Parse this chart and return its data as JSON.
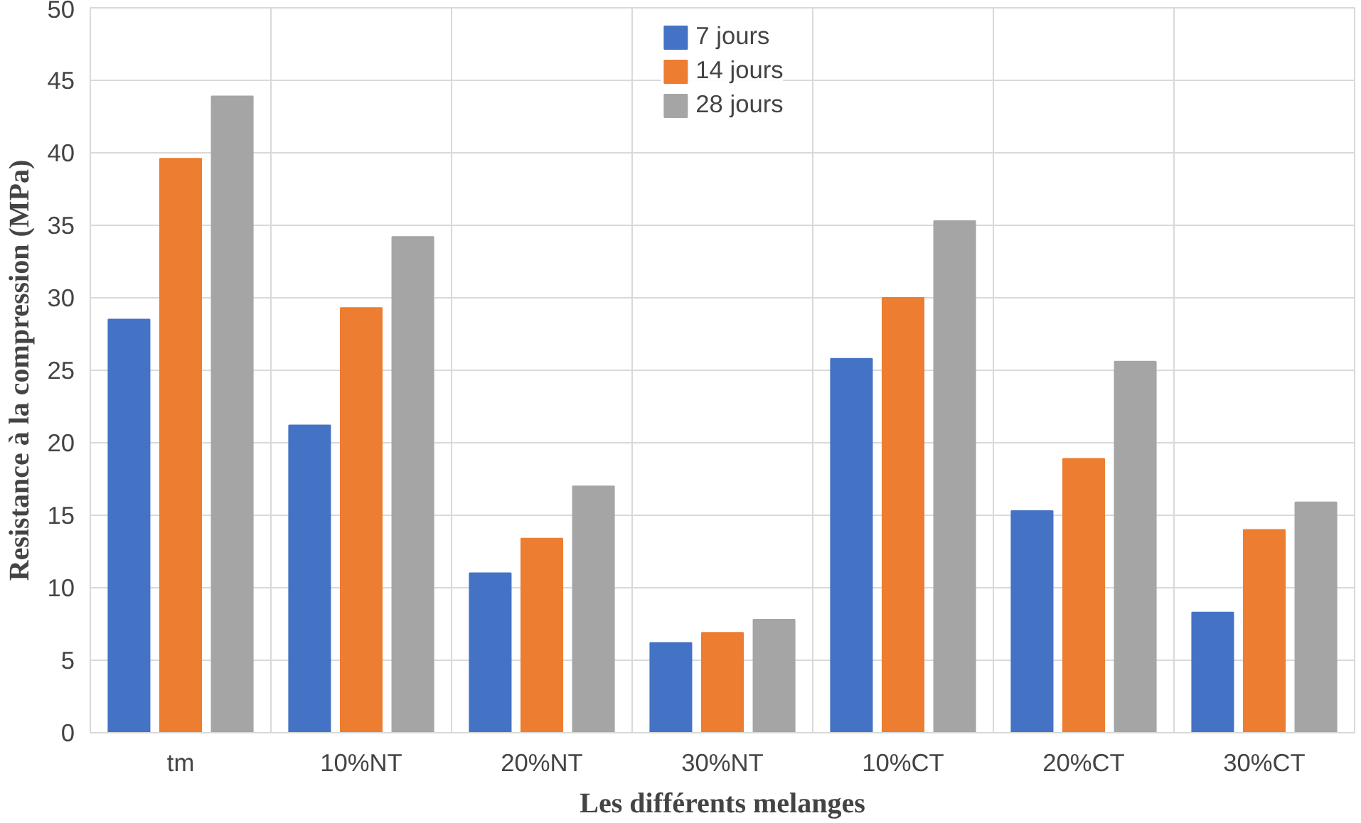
{
  "chart_data": {
    "type": "bar",
    "xlabel": "Les différents melanges",
    "ylabel": "Resistance à la compression (MPa)",
    "categories": [
      "tm",
      "10%NT",
      "20%NT",
      "30%NT",
      "10%CT",
      "20%CT",
      "30%CT"
    ],
    "series": [
      {
        "name": "7 jours",
        "color": "#4472c4",
        "values": [
          28.5,
          21.2,
          11.0,
          6.2,
          25.8,
          15.3,
          8.3
        ]
      },
      {
        "name": "14 jours",
        "color": "#ed7d31",
        "values": [
          39.6,
          29.3,
          13.4,
          6.9,
          30.0,
          18.9,
          14.0
        ]
      },
      {
        "name": "28 jours",
        "color": "#a5a5a5",
        "values": [
          43.9,
          34.2,
          17.0,
          7.8,
          35.3,
          25.6,
          15.9
        ]
      }
    ],
    "ylim": [
      0,
      50
    ],
    "yticks": [
      0,
      5,
      10,
      15,
      20,
      25,
      30,
      35,
      40,
      45,
      50
    ],
    "grid": true,
    "legend": "top"
  }
}
